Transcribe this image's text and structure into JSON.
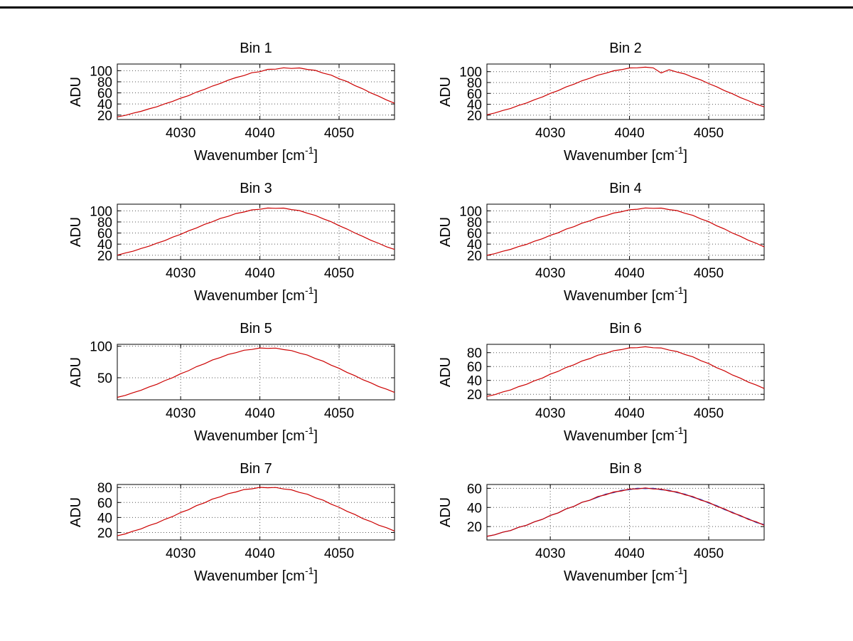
{
  "page": {
    "background": "#ffffff",
    "top_rule_color": "#000000"
  },
  "chart_data": {
    "type": "line",
    "layout": "8 subplots in 4 rows x 2 columns",
    "grid": "dotted",
    "legend": "none",
    "line_color": "#cc0000",
    "overlay_line_color": "#3344bb",
    "axis_color": "#000000",
    "grid_color": "#555555",
    "xlabel": {
      "base": "Wavenumber [cm",
      "superscript": "-1",
      "close": "]"
    },
    "ylabel": "ADU",
    "xlim": [
      4022,
      4057
    ],
    "xticks": [
      4030,
      4040,
      4050
    ],
    "x_values": [
      4022,
      4023,
      4024,
      4025,
      4026,
      4027,
      4028,
      4029,
      4030,
      4031,
      4032,
      4033,
      4034,
      4035,
      4036,
      4037,
      4038,
      4039,
      4040,
      4041,
      4042,
      4043,
      4044,
      4045,
      4046,
      4047,
      4048,
      4049,
      4050,
      4051,
      4052,
      4053,
      4054,
      4055,
      4056,
      4057
    ],
    "subplots": [
      {
        "title": "Bin 1",
        "ylim": [
          12,
          112
        ],
        "yticks": [
          20,
          40,
          60,
          80,
          100
        ],
        "adu_values": [
          16.8,
          19.5,
          23.4,
          26.8,
          31.2,
          35.0,
          40.3,
          44.8,
          50.4,
          55.1,
          61.3,
          66.2,
          72.3,
          77.0,
          82.9,
          87.6,
          91.2,
          96.3,
          98.2,
          102.4,
          102.8,
          105.2,
          104.1,
          105.0,
          102.2,
          100.6,
          95.6,
          92.0,
          85.5,
          80.4,
          73.2,
          67.3,
          60.0,
          54.0,
          47.1,
          41.4
        ]
      },
      {
        "title": "Bin 2",
        "ylim": [
          12,
          114
        ],
        "yticks": [
          20,
          40,
          60,
          80,
          100
        ],
        "adu_values": [
          20.7,
          24.0,
          28.6,
          32.4,
          37.9,
          42.3,
          48.4,
          53.4,
          60.0,
          65.2,
          71.9,
          77.0,
          83.3,
          88.0,
          93.5,
          97.1,
          101.6,
          103.7,
          106.8,
          107.1,
          108.3,
          107.0,
          97.5,
          103.5,
          99.2,
          95.7,
          89.8,
          84.9,
          78.0,
          72.3,
          65.1,
          59.3,
          52.3,
          46.6,
          40.2,
          35.3
        ]
      },
      {
        "title": "Bin 3",
        "ylim": [
          12,
          112
        ],
        "yticks": [
          20,
          40,
          60,
          80,
          100
        ],
        "adu_values": [
          20.1,
          23.9,
          27.2,
          32.1,
          36.2,
          41.8,
          46.4,
          52.6,
          57.7,
          64.1,
          69.2,
          75.6,
          80.3,
          86.2,
          90.1,
          95.2,
          97.9,
          101.8,
          102.8,
          105.1,
          104.5,
          105.0,
          102.3,
          100.4,
          95.7,
          91.8,
          85.6,
          80.3,
          73.3,
          67.2,
          60.1,
          53.9,
          47.0,
          41.5,
          35.2,
          30.4
        ]
      },
      {
        "title": "Bin 4",
        "ylim": [
          12,
          112
        ],
        "yticks": [
          20,
          40,
          60,
          80,
          100
        ],
        "adu_values": [
          19.8,
          22.8,
          27.1,
          30.6,
          35.6,
          39.6,
          45.2,
          49.7,
          55.8,
          60.5,
          67.0,
          71.5,
          77.8,
          82.0,
          87.7,
          91.2,
          96.0,
          98.4,
          102.0,
          102.9,
          105.2,
          104.6,
          104.9,
          102.2,
          100.4,
          95.6,
          91.9,
          85.5,
          80.4,
          73.2,
          67.3,
          60.0,
          54.0,
          47.0,
          41.5,
          35.2
        ]
      },
      {
        "title": "Bin 5",
        "ylim": [
          15,
          103
        ],
        "yticks": [
          50,
          100
        ],
        "adu_values": [
          18.9,
          22.0,
          26.4,
          30.1,
          35.4,
          39.6,
          45.5,
          50.2,
          56.4,
          61.2,
          67.6,
          72.2,
          78.1,
          82.0,
          87.0,
          89.8,
          93.6,
          94.9,
          97.2,
          96.6,
          97.0,
          94.7,
          93.1,
          89.1,
          86.0,
          80.6,
          76.3,
          70.0,
          65.0,
          58.5,
          53.3,
          46.9,
          42.0,
          36.1,
          31.8,
          26.7
        ]
      },
      {
        "title": "Bin 6",
        "ylim": [
          12,
          92
        ],
        "yticks": [
          20,
          40,
          60,
          80
        ],
        "adu_values": [
          16.9,
          19.5,
          23.4,
          26.3,
          31.0,
          34.4,
          39.5,
          43.4,
          49.0,
          53.0,
          58.7,
          62.6,
          68.0,
          71.5,
          76.3,
          79.0,
          82.9,
          84.4,
          87.0,
          87.2,
          88.5,
          87.1,
          86.8,
          83.7,
          81.6,
          77.3,
          73.9,
          68.5,
          64.2,
          58.4,
          53.7,
          47.8,
          43.2,
          37.5,
          33.3,
          28.3
        ]
      },
      {
        "title": "Bin 7",
        "ylim": [
          10,
          84
        ],
        "yticks": [
          20,
          40,
          60,
          80
        ],
        "adu_values": [
          15.6,
          18.1,
          21.8,
          24.8,
          29.3,
          32.6,
          37.5,
          41.3,
          46.6,
          50.4,
          55.8,
          59.5,
          64.5,
          67.6,
          71.8,
          74.0,
          77.3,
          78.2,
          80.2,
          79.6,
          80.0,
          78.0,
          76.9,
          73.4,
          71.0,
          66.4,
          63.0,
          57.7,
          53.6,
          48.2,
          44.0,
          38.6,
          34.7,
          29.7,
          26.3,
          22.0
        ]
      },
      {
        "title": "Bin 8",
        "ylim": [
          6,
          64
        ],
        "yticks": [
          20,
          40,
          60
        ],
        "adu_values": [
          9.8,
          11.4,
          14.1,
          15.9,
          19.2,
          21.4,
          25.0,
          27.6,
          31.6,
          34.3,
          38.5,
          41.2,
          45.3,
          47.6,
          51.4,
          53.2,
          56.2,
          57.2,
          59.3,
          59.3,
          60.4,
          59.3,
          59.2,
          57.2,
          56.2,
          53.2,
          51.4,
          47.6,
          45.3,
          41.2,
          38.5,
          34.3,
          31.6,
          27.5,
          25.0,
          21.4
        ],
        "overlay_values": [
          9.8,
          11.4,
          14.1,
          15.9,
          19.2,
          21.4,
          25.0,
          27.6,
          31.6,
          34.3,
          38.5,
          41.2,
          45.3,
          47.6,
          50.6,
          54.0,
          55.4,
          58.0,
          58.5,
          60.1,
          59.6,
          60.1,
          58.4,
          58.0,
          55.4,
          54.0,
          50.6,
          48.4,
          44.5,
          42.0,
          37.7,
          35.1,
          30.8,
          28.3,
          24.2,
          22.2
        ]
      }
    ]
  }
}
